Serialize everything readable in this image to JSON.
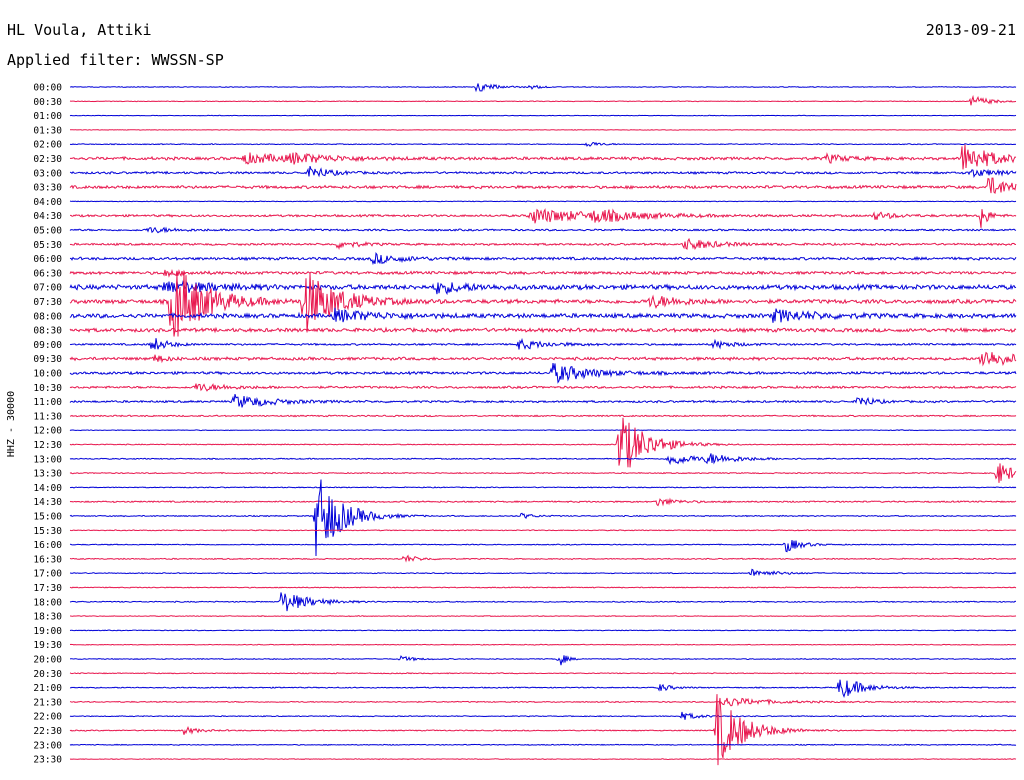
{
  "header": {
    "station": "HL Voula, Attiki",
    "date": "2013-09-21",
    "filter": "Applied filter: WWSSN-SP"
  },
  "colors": {
    "even": "#0000d8",
    "odd": "#e8174e"
  },
  "chart_data": {
    "type": "line",
    "ylabel": "HHZ - 30000",
    "rows": [
      "00:00",
      "00:30",
      "01:00",
      "01:30",
      "02:00",
      "02:30",
      "03:00",
      "03:30",
      "04:00",
      "04:30",
      "05:00",
      "05:30",
      "06:00",
      "06:30",
      "07:00",
      "07:30",
      "08:00",
      "08:30",
      "09:00",
      "09:30",
      "10:00",
      "10:30",
      "11:00",
      "11:30",
      "12:00",
      "12:30",
      "13:00",
      "13:30",
      "14:00",
      "14:30",
      "15:00",
      "15:30",
      "16:00",
      "16:30",
      "17:00",
      "17:30",
      "18:00",
      "18:30",
      "19:00",
      "19:30",
      "20:00",
      "20:30",
      "21:00",
      "21:30",
      "22:00",
      "22:30",
      "23:00",
      "23:30"
    ],
    "x_range_minutes": [
      0,
      30
    ],
    "row_noise": [
      0.4,
      0.4,
      0.3,
      0.3,
      0.5,
      1.6,
      1.2,
      1.6,
      0.4,
      1.2,
      1.0,
      1.1,
      1.5,
      1.6,
      2.6,
      2.2,
      2.4,
      2.0,
      1.0,
      1.6,
      1.4,
      1.2,
      1.1,
      0.8,
      0.4,
      0.5,
      0.6,
      0.6,
      0.5,
      0.8,
      0.6,
      0.5,
      0.5,
      0.6,
      0.5,
      0.5,
      0.6,
      0.4,
      0.4,
      0.4,
      0.5,
      0.5,
      0.6,
      0.6,
      0.5,
      0.6,
      0.5,
      0.4
    ],
    "events": [
      {
        "row": 0,
        "t": 12.9,
        "amp": 5,
        "dur": 0.9
      },
      {
        "row": 0,
        "t": 14.6,
        "amp": 2,
        "dur": 0.5
      },
      {
        "row": 1,
        "t": 28.6,
        "amp": 6,
        "dur": 0.8
      },
      {
        "row": 4,
        "t": 16.4,
        "amp": 3,
        "dur": 0.6
      },
      {
        "row": 5,
        "t": 5.5,
        "amp": 5,
        "dur": 2.5
      },
      {
        "row": 5,
        "t": 7.0,
        "amp": 4,
        "dur": 2.0
      },
      {
        "row": 5,
        "t": 24.0,
        "amp": 4,
        "dur": 1.0
      },
      {
        "row": 5,
        "t": 28.3,
        "amp": 16,
        "dur": 1.4
      },
      {
        "row": 6,
        "t": 7.6,
        "amp": 7,
        "dur": 0.9
      },
      {
        "row": 6,
        "t": 28.5,
        "amp": 4,
        "dur": 1.5
      },
      {
        "row": 7,
        "t": 29.1,
        "amp": 10,
        "dur": 1.3
      },
      {
        "row": 9,
        "t": 14.6,
        "amp": 8,
        "dur": 3.0
      },
      {
        "row": 9,
        "t": 16.6,
        "amp": 5,
        "dur": 2.0
      },
      {
        "row": 9,
        "t": 25.5,
        "amp": 4,
        "dur": 1.0
      },
      {
        "row": 9,
        "t": 28.9,
        "amp": 16,
        "dur": 0.3
      },
      {
        "row": 10,
        "t": 2.5,
        "amp": 3,
        "dur": 1.2
      },
      {
        "row": 11,
        "t": 19.5,
        "amp": 6,
        "dur": 1.5
      },
      {
        "row": 11,
        "t": 8.5,
        "amp": 4,
        "dur": 1.0
      },
      {
        "row": 12,
        "t": 9.6,
        "amp": 5,
        "dur": 1.5
      },
      {
        "row": 13,
        "t": 3.0,
        "amp": 3,
        "dur": 1.0
      },
      {
        "row": 14,
        "t": 11.6,
        "amp": 6,
        "dur": 1.5
      },
      {
        "row": 14,
        "t": 3.0,
        "amp": 6,
        "dur": 2.5
      },
      {
        "row": 15,
        "t": 3.2,
        "amp": 44,
        "dur": 1.6
      },
      {
        "row": 15,
        "t": 7.4,
        "amp": 34,
        "dur": 1.6
      },
      {
        "row": 15,
        "t": 18.4,
        "amp": 6,
        "dur": 1.5
      },
      {
        "row": 16,
        "t": 8.4,
        "amp": 6,
        "dur": 2.0
      },
      {
        "row": 16,
        "t": 22.3,
        "amp": 6,
        "dur": 2.0
      },
      {
        "row": 18,
        "t": 2.6,
        "amp": 8,
        "dur": 0.7
      },
      {
        "row": 18,
        "t": 14.2,
        "amp": 5,
        "dur": 1.5
      },
      {
        "row": 18,
        "t": 20.4,
        "amp": 4,
        "dur": 1.0
      },
      {
        "row": 19,
        "t": 28.9,
        "amp": 10,
        "dur": 1.5
      },
      {
        "row": 19,
        "t": 2.7,
        "amp": 4,
        "dur": 0.5
      },
      {
        "row": 20,
        "t": 15.3,
        "amp": 10,
        "dur": 1.8
      },
      {
        "row": 21,
        "t": 4.0,
        "amp": 4,
        "dur": 1.5
      },
      {
        "row": 22,
        "t": 5.2,
        "amp": 7,
        "dur": 1.8
      },
      {
        "row": 22,
        "t": 25.0,
        "amp": 7,
        "dur": 0.6
      },
      {
        "row": 25,
        "t": 17.4,
        "amp": 36,
        "dur": 1.3
      },
      {
        "row": 26,
        "t": 19.0,
        "amp": 7,
        "dur": 1.2
      },
      {
        "row": 26,
        "t": 20.2,
        "amp": 5,
        "dur": 1.5
      },
      {
        "row": 27,
        "t": 29.4,
        "amp": 12,
        "dur": 0.9
      },
      {
        "row": 29,
        "t": 18.6,
        "amp": 4,
        "dur": 1.0
      },
      {
        "row": 30,
        "t": 7.8,
        "amp": 46,
        "dur": 1.2
      },
      {
        "row": 30,
        "t": 14.3,
        "amp": 3,
        "dur": 0.6
      },
      {
        "row": 32,
        "t": 22.7,
        "amp": 8,
        "dur": 0.7
      },
      {
        "row": 33,
        "t": 10.6,
        "amp": 4,
        "dur": 0.7
      },
      {
        "row": 34,
        "t": 21.6,
        "amp": 4,
        "dur": 1.2
      },
      {
        "row": 36,
        "t": 6.7,
        "amp": 12,
        "dur": 1.3
      },
      {
        "row": 40,
        "t": 10.5,
        "amp": 3,
        "dur": 0.6
      },
      {
        "row": 40,
        "t": 15.5,
        "amp": 10,
        "dur": 0.3
      },
      {
        "row": 42,
        "t": 18.7,
        "amp": 4,
        "dur": 0.6
      },
      {
        "row": 42,
        "t": 24.4,
        "amp": 12,
        "dur": 1.1
      },
      {
        "row": 43,
        "t": 20.7,
        "amp": 5,
        "dur": 2.0
      },
      {
        "row": 44,
        "t": 19.4,
        "amp": 4,
        "dur": 0.8
      },
      {
        "row": 45,
        "t": 20.5,
        "amp": 38,
        "dur": 1.3
      },
      {
        "row": 45,
        "t": 3.6,
        "amp": 4,
        "dur": 0.7
      }
    ]
  }
}
